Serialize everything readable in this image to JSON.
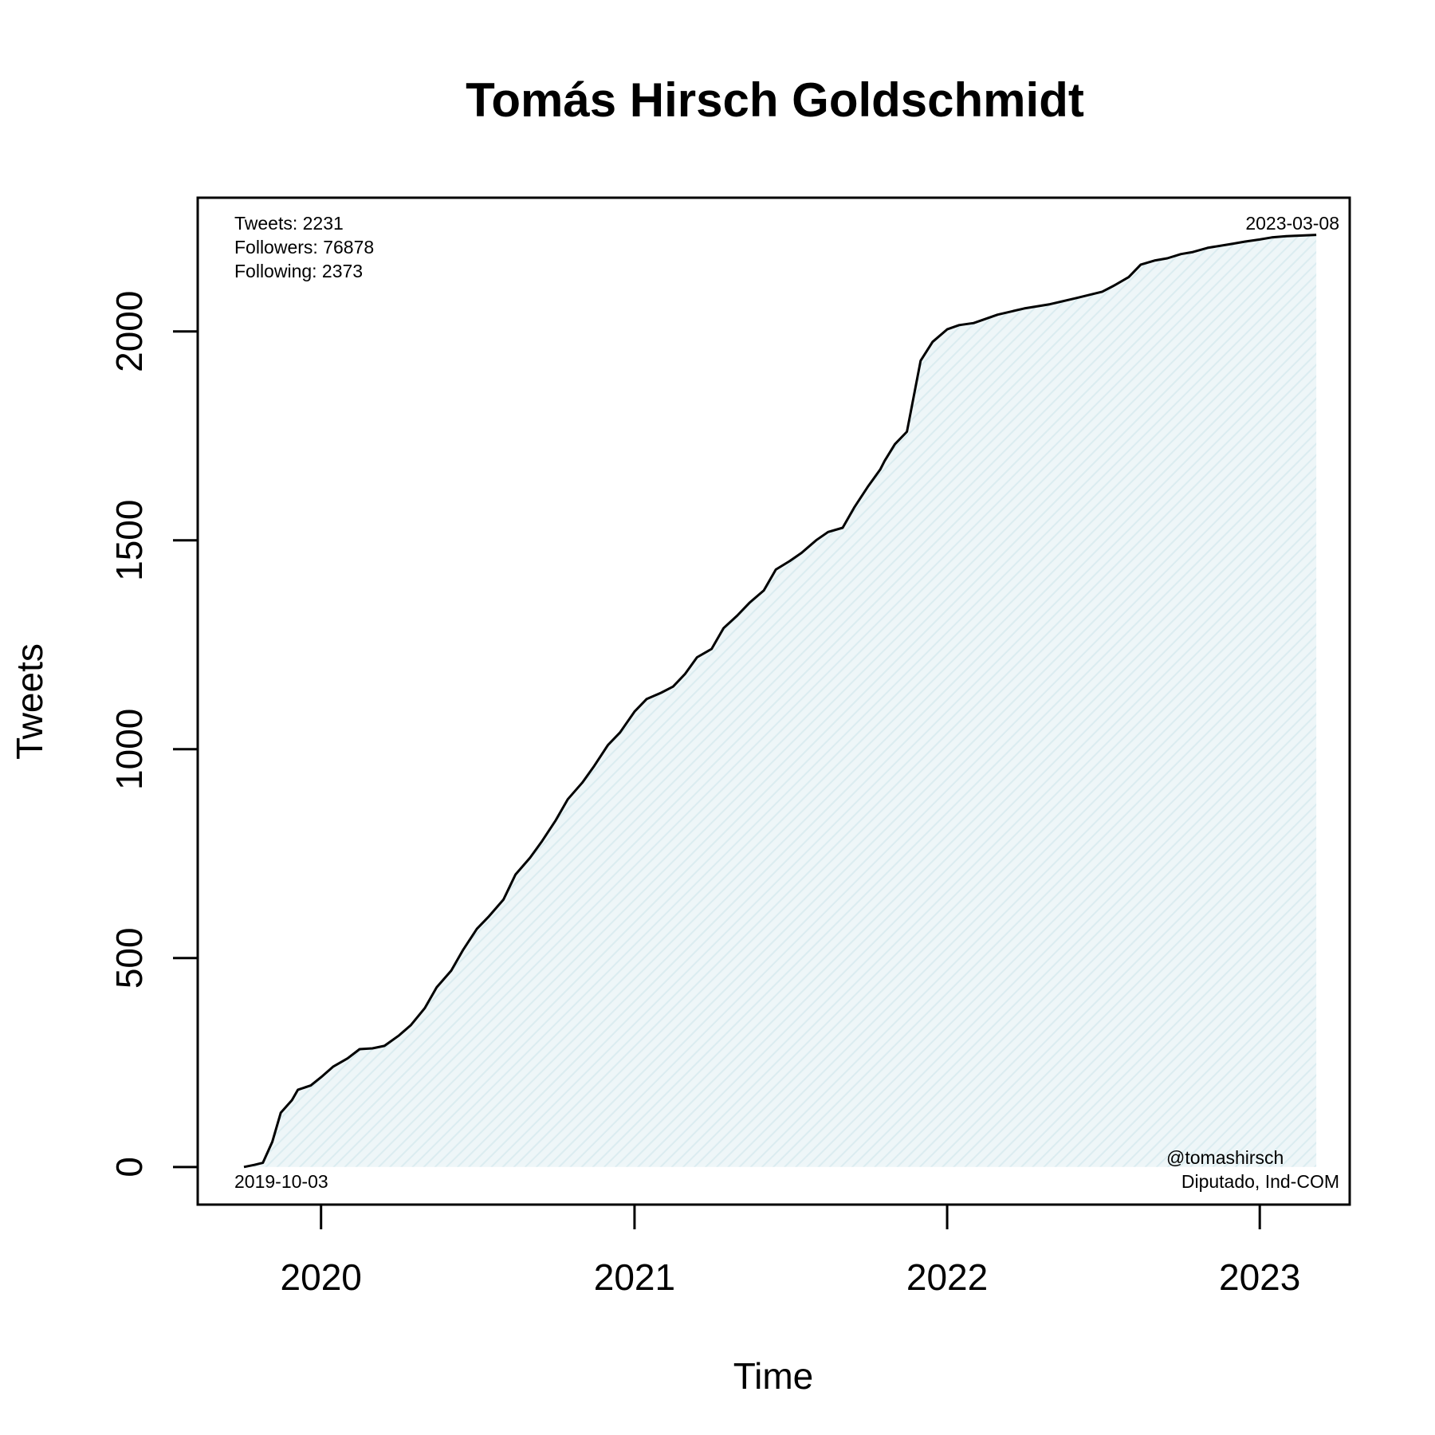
{
  "chart_data": {
    "type": "area",
    "title": "Tomás Hirsch Goldschmidt",
    "xlabel": "Time",
    "ylabel": "Tweets",
    "x_ticks": [
      "2020",
      "2021",
      "2022",
      "2023"
    ],
    "y_ticks": [
      0,
      500,
      1000,
      1500,
      2000
    ],
    "xlim": [
      "2019-08-10",
      "2023-04-16"
    ],
    "ylim": [
      -90,
      2320
    ],
    "grid": false,
    "fill_color": "#e4f1f4",
    "line_color": "#000000",
    "stats": [
      "Tweets: 2231",
      "Followers: 76878",
      "Following: 2373"
    ],
    "start_date": "2019-10-03",
    "end_date": "2023-03-08",
    "handle": "@tomashirsch",
    "role": "Diputado, Ind-COM",
    "series": [
      {
        "x": [
          "2019-10-03",
          "2019-10-15",
          "2019-10-25",
          "2019-11-05",
          "2019-11-15",
          "2019-11-28",
          "2019-12-05",
          "2019-12-20",
          "2020-01-01",
          "2020-01-15",
          "2020-02-01",
          "2020-02-15",
          "2020-03-01",
          "2020-03-15",
          "2020-04-01",
          "2020-04-15",
          "2020-05-01",
          "2020-05-15",
          "2020-06-01",
          "2020-06-15",
          "2020-07-01",
          "2020-07-15",
          "2020-08-01",
          "2020-08-15",
          "2020-09-01",
          "2020-09-15",
          "2020-10-01",
          "2020-10-15",
          "2020-11-01",
          "2020-11-15",
          "2020-12-01",
          "2020-12-15",
          "2021-01-01",
          "2021-01-15",
          "2021-02-01",
          "2021-02-15",
          "2021-03-01",
          "2021-03-15",
          "2021-04-01",
          "2021-04-15",
          "2021-05-01",
          "2021-05-15",
          "2021-06-01",
          "2021-06-15",
          "2021-07-01",
          "2021-07-15",
          "2021-08-01",
          "2021-08-15",
          "2021-09-01",
          "2021-09-15",
          "2021-10-01",
          "2021-10-15",
          "2021-10-20",
          "2021-11-01",
          "2021-11-15",
          "2021-12-01",
          "2021-12-15",
          "2022-01-01",
          "2022-01-15",
          "2022-02-01",
          "2022-03-01",
          "2022-04-01",
          "2022-05-01",
          "2022-06-01",
          "2022-07-01",
          "2022-07-15",
          "2022-08-01",
          "2022-08-15",
          "2022-09-01",
          "2022-09-15",
          "2022-10-01",
          "2022-10-15",
          "2022-11-01",
          "2022-12-01",
          "2022-12-15",
          "2023-01-01",
          "2023-01-15",
          "2023-02-01",
          "2023-03-08"
        ],
        "y": [
          0,
          5,
          10,
          60,
          130,
          160,
          185,
          195,
          215,
          240,
          260,
          282,
          284,
          290,
          315,
          340,
          380,
          430,
          470,
          520,
          570,
          600,
          640,
          700,
          740,
          780,
          830,
          880,
          920,
          960,
          1010,
          1040,
          1090,
          1120,
          1135,
          1150,
          1180,
          1220,
          1240,
          1290,
          1320,
          1350,
          1380,
          1430,
          1450,
          1470,
          1500,
          1520,
          1530,
          1580,
          1630,
          1670,
          1690,
          1730,
          1760,
          1930,
          1975,
          2005,
          2015,
          2020,
          2040,
          2055,
          2065,
          2080,
          2095,
          2110,
          2130,
          2160,
          2170,
          2175,
          2185,
          2190,
          2200,
          2210,
          2215,
          2220,
          2225,
          2228,
          2231
        ]
      }
    ]
  }
}
